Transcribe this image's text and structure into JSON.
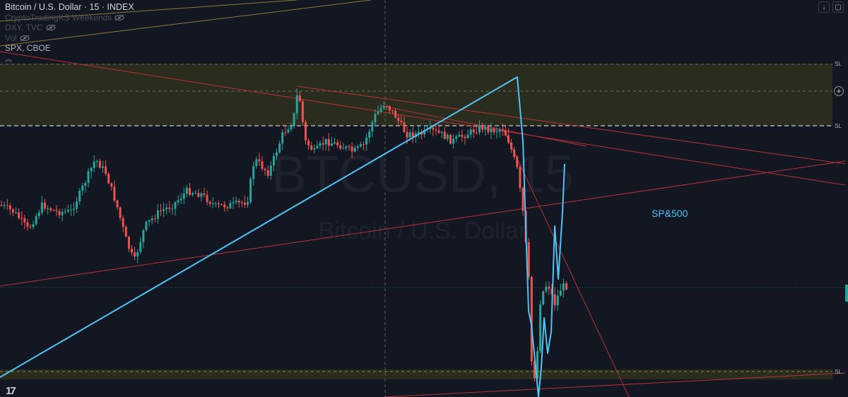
{
  "legend": {
    "title": "Bitcoin / U.S. Dollar · 15 · INDEX",
    "rows": [
      "CryptoTradingKS Weekends",
      "DXY, TVC",
      "Vol",
      "SPX, CBOE"
    ]
  },
  "watermark": {
    "symbol": "BTCUSD, 15",
    "name": "Bitcoin / U.S. Dollar"
  },
  "annotation": "SP&500",
  "sl_labels": [
    "SL",
    "SL",
    "SL"
  ],
  "icons": {
    "scroll_down": "arrow-down-icon",
    "fullscreen": "fullscreen-icon",
    "add": "plus-icon",
    "hide": "eye-crossed-icon",
    "logo": "tradingview-logo-icon"
  },
  "colors": {
    "background": "#131722",
    "up": "#26a69a",
    "down": "#ef5350",
    "sp500_line": "#4fc3f7",
    "zone": "#2a2c1e",
    "trendline": "#b8313a",
    "gold_line": "#8a7a3a"
  },
  "chart_data": {
    "type": "candlestick",
    "symbol": "BTCUSD",
    "interval": "15",
    "overlay_series": [
      {
        "name": "SP&500",
        "type": "line"
      }
    ],
    "zones": [
      "resistance",
      "support"
    ]
  }
}
